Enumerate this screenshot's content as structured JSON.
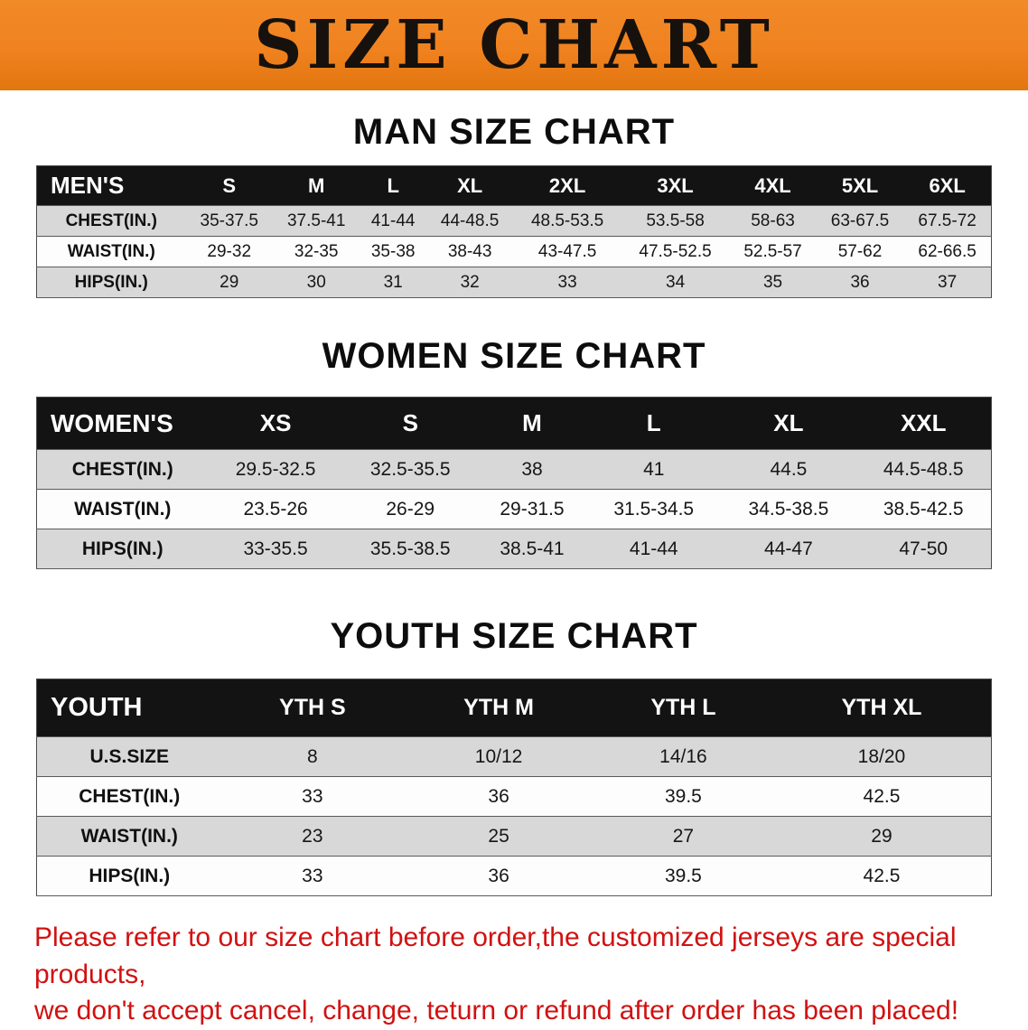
{
  "banner": {
    "title": "SIZE CHART"
  },
  "sections": {
    "men": {
      "heading": "MAN SIZE CHART"
    },
    "women": {
      "heading": "WOMEN SIZE CHART"
    },
    "youth": {
      "heading": "YOUTH SIZE CHART"
    }
  },
  "tables": {
    "men": {
      "header": [
        "MEN'S",
        "S",
        "M",
        "L",
        "XL",
        "2XL",
        "3XL",
        "4XL",
        "5XL",
        "6XL"
      ],
      "rows": [
        [
          "CHEST(IN.)",
          "35-37.5",
          "37.5-41",
          "41-44",
          "44-48.5",
          "48.5-53.5",
          "53.5-58",
          "58-63",
          "63-67.5",
          "67.5-72"
        ],
        [
          "WAIST(IN.)",
          "29-32",
          "32-35",
          "35-38",
          "38-43",
          "43-47.5",
          "47.5-52.5",
          "52.5-57",
          "57-62",
          "62-66.5"
        ],
        [
          "HIPS(IN.)",
          "29",
          "30",
          "31",
          "32",
          "33",
          "34",
          "35",
          "36",
          "37"
        ]
      ]
    },
    "women": {
      "header": [
        "WOMEN'S",
        "XS",
        "S",
        "M",
        "L",
        "XL",
        "XXL"
      ],
      "rows": [
        [
          "CHEST(IN.)",
          "29.5-32.5",
          "32.5-35.5",
          "38",
          "41",
          "44.5",
          "44.5-48.5"
        ],
        [
          "WAIST(IN.)",
          "23.5-26",
          "26-29",
          "29-31.5",
          "31.5-34.5",
          "34.5-38.5",
          "38.5-42.5"
        ],
        [
          "HIPS(IN.)",
          "33-35.5",
          "35.5-38.5",
          "38.5-41",
          "41-44",
          "44-47",
          "47-50"
        ]
      ]
    },
    "youth": {
      "header": [
        "YOUTH",
        "YTH S",
        "YTH M",
        "YTH L",
        "YTH XL"
      ],
      "rows": [
        [
          "U.S.SIZE",
          "8",
          "10/12",
          "14/16",
          "18/20"
        ],
        [
          "CHEST(IN.)",
          "33",
          "36",
          "39.5",
          "42.5"
        ],
        [
          "WAIST(IN.)",
          "23",
          "25",
          "27",
          "29"
        ],
        [
          "HIPS(IN.)",
          "33",
          "36",
          "39.5",
          "42.5"
        ]
      ]
    }
  },
  "disclaimer": {
    "line1": "Please refer to our size chart before order,the customized jerseys are special products,",
    "line2": "we don't accept cancel, change, teturn or refund after order has been placed!"
  },
  "colors": {
    "banner_orange": "#f0821f",
    "header_black": "#131313",
    "row_gray": "#d8d8d8",
    "disclaimer_red": "#d11111"
  }
}
